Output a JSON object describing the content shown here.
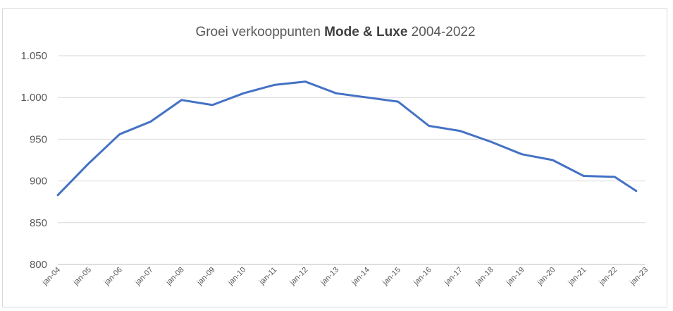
{
  "chart_data": {
    "type": "line",
    "title": {
      "prefix": "Groei verkooppunten ",
      "bold": "Mode & Luxe",
      "suffix": " 2004-2022"
    },
    "xlabel": "",
    "ylabel": "",
    "ylim": [
      800,
      1050
    ],
    "y_ticks": [
      800,
      850,
      900,
      950,
      1000,
      1050
    ],
    "y_tick_labels": [
      "800",
      "850",
      "900",
      "950",
      "1.000",
      "1.050"
    ],
    "categories": [
      "jan-04",
      "jan-05",
      "jan-06",
      "jan-07",
      "jan-08",
      "jan-09",
      "jan-10",
      "jan-11",
      "jan-12",
      "jan-13",
      "jan-14",
      "jan-15",
      "jan-16",
      "jan-17",
      "jan-18",
      "jan-19",
      "jan-20",
      "jan-21",
      "jan-22",
      "jan-23"
    ],
    "x_extent_index": [
      0,
      19
    ],
    "grid": true,
    "legend": "none",
    "series": [
      {
        "color": "#4472c4",
        "x_index": [
          0,
          1,
          2,
          3,
          4,
          5,
          6,
          7,
          8,
          9,
          10,
          11,
          12,
          13,
          14,
          15,
          16,
          17,
          18,
          18.7
        ],
        "values": [
          883,
          921,
          956,
          971,
          997,
          991,
          1005,
          1015,
          1019,
          1005,
          1000,
          995,
          966,
          960,
          947,
          932,
          925,
          906,
          905,
          888
        ]
      }
    ]
  }
}
